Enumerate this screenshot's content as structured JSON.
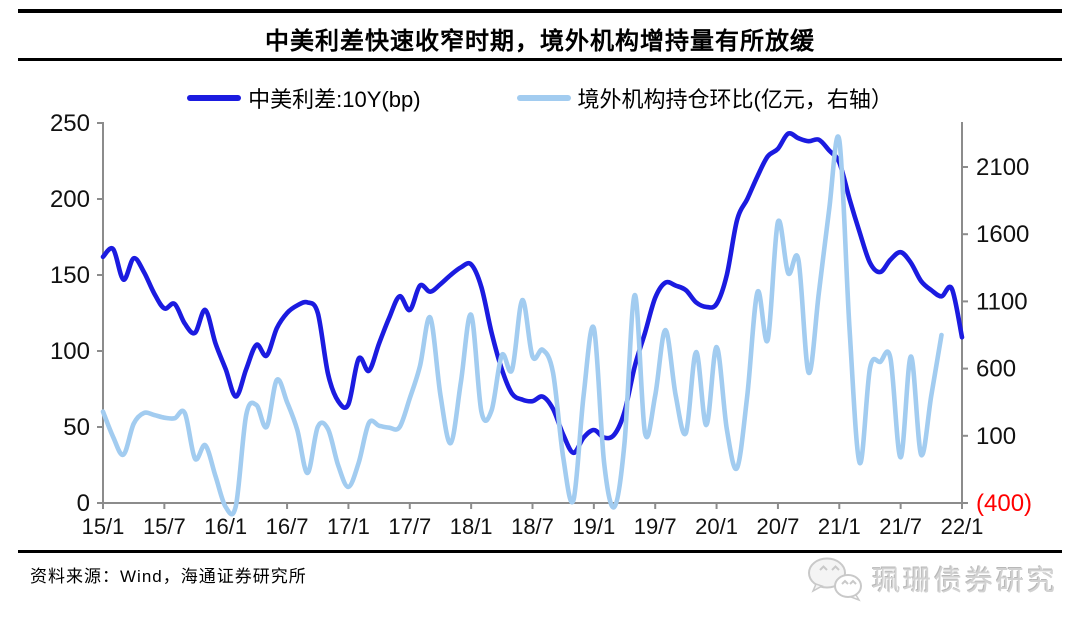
{
  "title": "中美利差快速收窄时期，境外机构增持量有所放缓",
  "legend": [
    {
      "label": "中美利差:10Y(bp)",
      "color": "#1b1be0"
    },
    {
      "label": "境外机构持仓环比(亿元，右轴）",
      "color": "#a2ccf0"
    }
  ],
  "source": "资料来源：Wind，海通证券研究所",
  "watermark": {
    "icon": "wechat-icon",
    "text": "珮珊债券研究"
  },
  "colors": {
    "axis": "#8c8c8c",
    "label": "#111111",
    "negative_label": "#ff0000",
    "spread_line": "#1b1be0",
    "holdings_line": "#a2ccf0"
  },
  "chart_data": {
    "type": "line",
    "x_start": "2015/1",
    "x_end": "2022/1",
    "frequency": "monthly",
    "x_tick_labels": [
      "15/1",
      "15/7",
      "16/1",
      "16/7",
      "17/1",
      "17/7",
      "18/1",
      "18/7",
      "19/1",
      "19/7",
      "20/1",
      "20/7",
      "21/1",
      "21/7",
      "22/1"
    ],
    "x_label_step": 6,
    "left_axis": {
      "ticks": [
        0,
        50,
        100,
        150,
        200,
        250
      ],
      "tick_labels": [
        "0",
        "50",
        "100",
        "150",
        "200",
        "250"
      ],
      "range": [
        0,
        250
      ]
    },
    "right_axis": {
      "ticks": [
        -400,
        100,
        600,
        1100,
        1600,
        2100
      ],
      "tick_labels": [
        "(400)",
        "100",
        "600",
        "1100",
        "1600",
        "2100"
      ],
      "range": [
        -400,
        2100
      ]
    },
    "grid": false,
    "legend_position": "top",
    "series": [
      {
        "name": "中美利差:10Y(bp)",
        "axis": "left",
        "color": "#1b1be0",
        "values": [
          162,
          167,
          147,
          161,
          152,
          138,
          128,
          131,
          118,
          112,
          127,
          105,
          88,
          70,
          88,
          104,
          97,
          115,
          125,
          130,
          132,
          125,
          85,
          67,
          65,
          95,
          87,
          105,
          122,
          136,
          127,
          143,
          139,
          144,
          150,
          155,
          157,
          142,
          112,
          88,
          72,
          68,
          67,
          70,
          62,
          45,
          33,
          43,
          48,
          43,
          45,
          60,
          90,
          112,
          135,
          145,
          143,
          140,
          132,
          129,
          131,
          150,
          186,
          200,
          215,
          228,
          233,
          243,
          240,
          238,
          239,
          232,
          224,
          200,
          178,
          158,
          152,
          160,
          165,
          158,
          146,
          140,
          136,
          141,
          109
        ]
      },
      {
        "name": "境外机构持仓环比(亿元，右轴）",
        "axis": "right",
        "color": "#a2ccf0",
        "values": [
          280,
          90,
          -40,
          190,
          270,
          255,
          235,
          230,
          270,
          -70,
          30,
          -200,
          -430,
          -420,
          255,
          329,
          166,
          515,
          350,
          143,
          -177,
          166,
          150,
          -120,
          -280,
          -100,
          195,
          175,
          160,
          165,
          380,
          620,
          980,
          400,
          46,
          500,
          1000,
          280,
          290,
          700,
          590,
          1110,
          690,
          740,
          570,
          -60,
          -380,
          400,
          900,
          -100,
          -430,
          46,
          1147,
          121,
          400,
          887,
          400,
          121,
          723,
          180,
          760,
          150,
          -140,
          400,
          1170,
          813,
          1690,
          1310,
          1410,
          570,
          1160,
          1780,
          2300,
          900,
          -102,
          604,
          650,
          678,
          -60,
          690,
          -40,
          400,
          850,
          null,
          null
        ]
      }
    ]
  }
}
